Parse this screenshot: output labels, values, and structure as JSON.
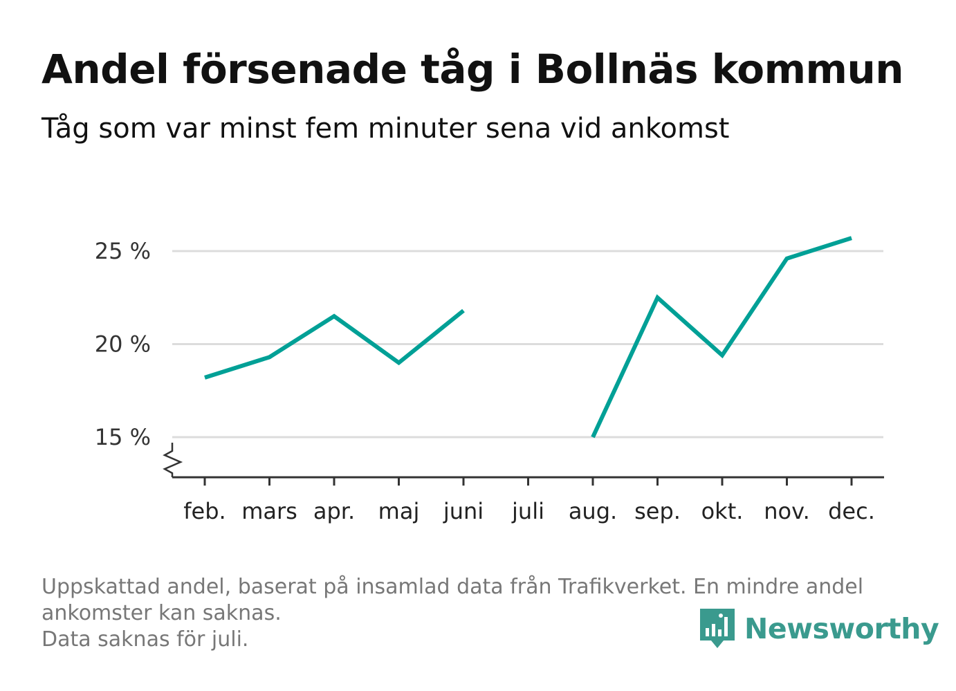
{
  "title": "Andel försenade tåg i Bollnäs kommun",
  "subtitle": "Tåg som var minst fem minuter sena vid ankomst",
  "notes": [
    "Uppskattad andel, baserat på insamlad data från Trafikverket. En mindre andel",
    "ankomster kan saknas.",
    "Data saknas för juli."
  ],
  "brand": {
    "name": "Newsworthy",
    "color": "#3a9a8e"
  },
  "chart_data": {
    "type": "line",
    "title": "Andel försenade tåg i Bollnäs kommun",
    "subtitle": "Tåg som var minst fem minuter sena vid ankomst",
    "xlabel": "",
    "ylabel": "",
    "categories": [
      "feb.",
      "mars",
      "apr.",
      "maj",
      "juni",
      "juli",
      "aug.",
      "sep.",
      "okt.",
      "nov.",
      "dec."
    ],
    "series": [
      {
        "values": [
          18.2,
          19.3,
          21.5,
          19.0,
          21.8,
          null,
          15.0,
          22.5,
          19.4,
          24.6,
          25.7
        ],
        "color": "#00a096"
      }
    ],
    "yticks": [
      {
        "value": 15,
        "label": "15 %"
      },
      {
        "value": 20,
        "label": "20 %"
      },
      {
        "value": 25,
        "label": "25 %"
      }
    ],
    "ylim": [
      12.8,
      27
    ],
    "grid": true,
    "axis_break": true,
    "legend": "none"
  }
}
